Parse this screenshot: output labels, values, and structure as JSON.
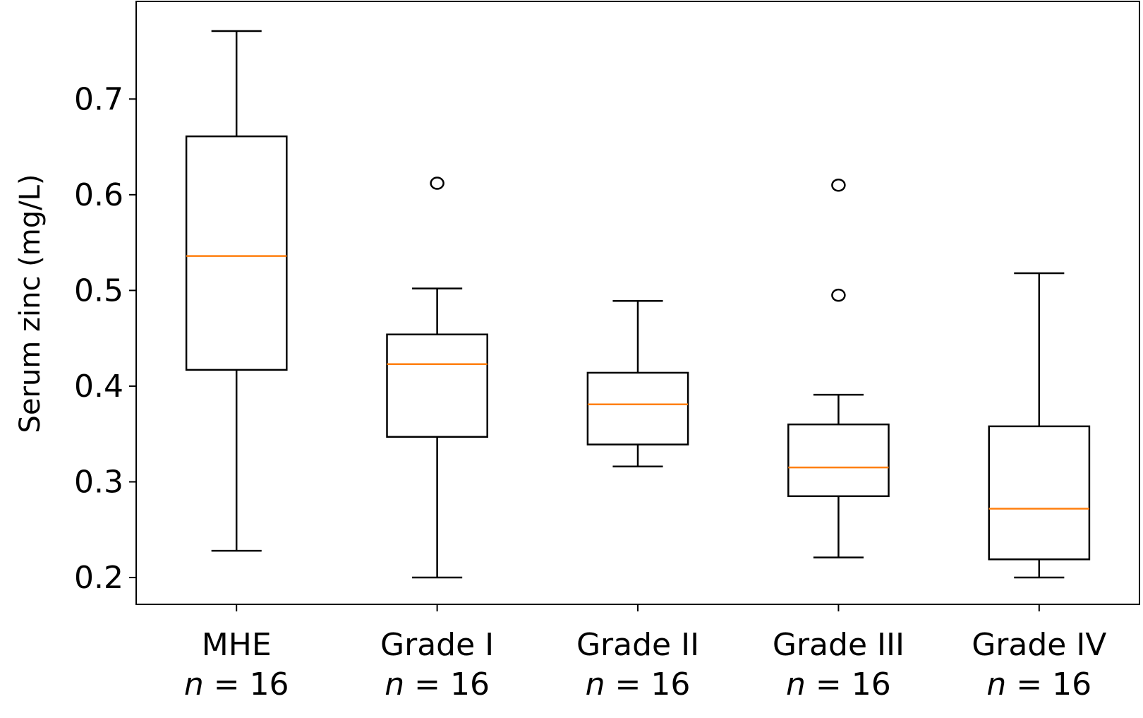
{
  "chart_data": {
    "type": "box",
    "title": "",
    "xlabel": "",
    "ylabel": "Serum zinc (mg/L)",
    "ylim": [
      0.172,
      0.802
    ],
    "yticks": [
      0.2,
      0.3,
      0.4,
      0.5,
      0.6,
      0.7
    ],
    "ytick_labels": [
      "0.2",
      "0.3",
      "0.4",
      "0.5",
      "0.6",
      "0.7"
    ],
    "grid": false,
    "n_prefix": "n",
    "n_infix": " = ",
    "colors": {
      "box": "#000000",
      "median": "#ff7f0e"
    },
    "groups": [
      {
        "category": "MHE",
        "n": "16",
        "whisker_low": 0.228,
        "q1": 0.417,
        "median": 0.536,
        "q3": 0.661,
        "whisker_high": 0.771,
        "outliers": []
      },
      {
        "category": "Grade I",
        "n": "16",
        "whisker_low": 0.2,
        "q1": 0.347,
        "median": 0.423,
        "q3": 0.454,
        "whisker_high": 0.502,
        "outliers": [
          0.612
        ]
      },
      {
        "category": "Grade II",
        "n": "16",
        "whisker_low": 0.316,
        "q1": 0.339,
        "median": 0.381,
        "q3": 0.414,
        "whisker_high": 0.489,
        "outliers": []
      },
      {
        "category": "Grade III",
        "n": "16",
        "whisker_low": 0.221,
        "q1": 0.285,
        "median": 0.315,
        "q3": 0.36,
        "whisker_high": 0.391,
        "outliers": [
          0.495,
          0.61
        ]
      },
      {
        "category": "Grade IV",
        "n": "16",
        "whisker_low": 0.2,
        "q1": 0.219,
        "median": 0.272,
        "q3": 0.358,
        "whisker_high": 0.518,
        "outliers": []
      }
    ]
  }
}
